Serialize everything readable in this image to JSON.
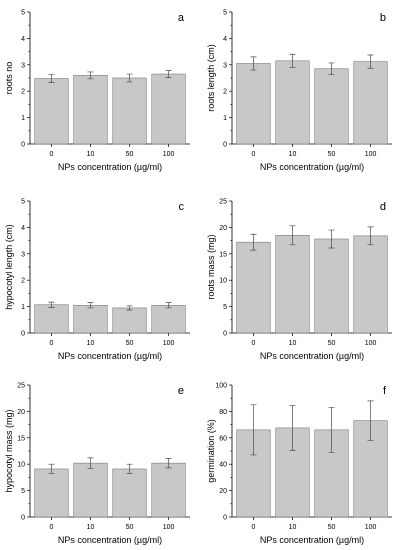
{
  "colors": {
    "bar_fill": "#c8c8c8",
    "bar_stroke": "#7a7a7a",
    "error_bar": "#4a4a4a",
    "axis": "#000000"
  },
  "chart_data": [
    {
      "type": "bar",
      "panel": "a",
      "categories": [
        "0",
        "10",
        "50",
        "100"
      ],
      "values": [
        2.48,
        2.6,
        2.5,
        2.65
      ],
      "errors": [
        0.15,
        0.13,
        0.15,
        0.13
      ],
      "xlabel": "NPs concentration (µg/ml)",
      "ylabel": "roots no",
      "ylim": [
        0,
        5
      ],
      "yticks": [
        "0",
        "1",
        "2",
        "3",
        "4",
        "5"
      ]
    },
    {
      "type": "bar",
      "panel": "b",
      "categories": [
        "0",
        "10",
        "50",
        "100"
      ],
      "values": [
        3.05,
        3.15,
        2.85,
        3.12
      ],
      "errors": [
        0.25,
        0.25,
        0.22,
        0.25
      ],
      "xlabel": "NPs concentration (µg/ml)",
      "ylabel": "roots length (cm)",
      "ylim": [
        0,
        5
      ],
      "yticks": [
        "0",
        "1",
        "2",
        "3",
        "4",
        "5"
      ]
    },
    {
      "type": "bar",
      "panel": "c",
      "categories": [
        "0",
        "10",
        "50",
        "100"
      ],
      "values": [
        1.07,
        1.05,
        0.95,
        1.05
      ],
      "errors": [
        0.1,
        0.1,
        0.08,
        0.1
      ],
      "xlabel": "NPs concentration (µg/ml)",
      "ylabel": "hypocotyl length (cm)",
      "ylim": [
        0,
        5
      ],
      "yticks": [
        "0",
        "1",
        "2",
        "3",
        "4",
        "5"
      ]
    },
    {
      "type": "bar",
      "panel": "d",
      "categories": [
        "0",
        "10",
        "50",
        "100"
      ],
      "values": [
        17.2,
        18.5,
        17.8,
        18.4
      ],
      "errors": [
        1.5,
        1.8,
        1.7,
        1.7
      ],
      "xlabel": "NPs concentration (µg/ml)",
      "ylabel": "roots mass (mg)",
      "ylim": [
        0,
        25
      ],
      "yticks": [
        "0",
        "5",
        "10",
        "15",
        "20",
        "25"
      ]
    },
    {
      "type": "bar",
      "panel": "e",
      "categories": [
        "0",
        "10",
        "50",
        "100"
      ],
      "values": [
        9.1,
        10.2,
        9.1,
        10.2
      ],
      "errors": [
        0.9,
        1.0,
        0.9,
        0.9
      ],
      "xlabel": "NPs concentration (µg/ml)",
      "ylabel": "hypocotyl mass (mg)",
      "ylim": [
        0,
        25
      ],
      "yticks": [
        "0",
        "5",
        "10",
        "15",
        "20",
        "25"
      ]
    },
    {
      "type": "bar",
      "panel": "f",
      "categories": [
        "0",
        "10",
        "50",
        "100"
      ],
      "values": [
        66,
        67.5,
        66,
        73
      ],
      "errors": [
        19,
        17,
        17,
        15
      ],
      "xlabel": "NPs concentration (µg/ml)",
      "ylabel": "germination (%)",
      "ylim": [
        0,
        100
      ],
      "yticks": [
        "0",
        "20",
        "40",
        "60",
        "80",
        "100"
      ]
    }
  ]
}
